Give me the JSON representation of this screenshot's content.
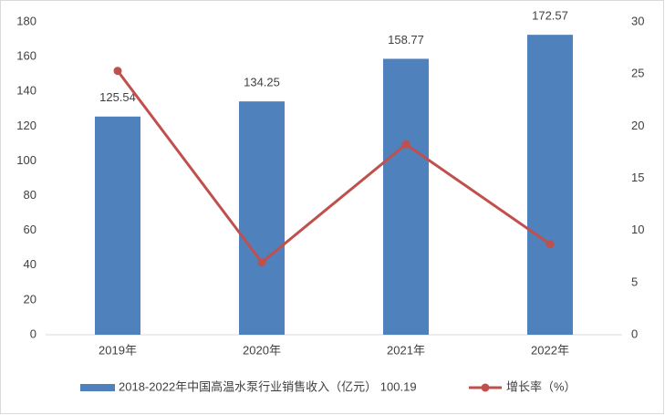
{
  "chart_data": {
    "type": "bar_line",
    "categories": [
      "2019年",
      "2020年",
      "2021年",
      "2022年"
    ],
    "series": [
      {
        "name": "2018-2022年中国高温水泵行业销售收入（亿元） 100.19",
        "type": "bar",
        "color": "#4f81bd",
        "values": [
          125.54,
          134.25,
          158.77,
          172.57
        ]
      },
      {
        "name": "增长率（%）",
        "type": "line",
        "axis": "y2",
        "color": "#c0504d",
        "values": [
          25.3,
          6.94,
          18.26,
          8.69
        ]
      }
    ],
    "ylim": [
      0,
      180
    ],
    "yticks": [
      0,
      20,
      40,
      60,
      80,
      100,
      120,
      140,
      160,
      180
    ],
    "y2lim": [
      0,
      30
    ],
    "y2ticks": [
      0,
      5,
      10,
      15,
      20,
      25,
      30
    ],
    "grid": false,
    "legend": "bottom"
  }
}
